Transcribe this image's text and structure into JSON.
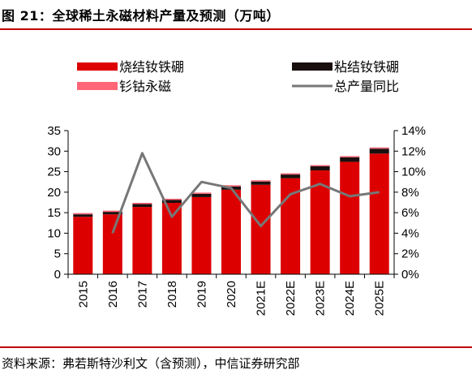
{
  "figure": {
    "title": "图 21：全球稀土永磁材料产量及预测（万吨）",
    "source": "资料来源：弗若斯特沙利文（含预测），中信证券研究部"
  },
  "colors": {
    "sintered": "#dd0000",
    "bonded": "#1a0f0f",
    "smco": "#ff6677",
    "growth": "#777777",
    "rule": "#c00000"
  },
  "chart_data": {
    "type": "bar",
    "stacked": true,
    "categories": [
      "2015",
      "2016",
      "2017",
      "2018",
      "2019",
      "2020",
      "2021E",
      "2022E",
      "2023E",
      "2024E",
      "2025E"
    ],
    "series": [
      {
        "name": "烧结钕铁硼",
        "type": "bar",
        "axis": "left",
        "color": "#dd0000",
        "values": [
          14.0,
          14.6,
          16.4,
          17.4,
          18.8,
          20.6,
          21.8,
          23.4,
          25.3,
          27.4,
          29.4
        ]
      },
      {
        "name": "粘结钕铁硼",
        "type": "bar",
        "axis": "left",
        "color": "#1a0f0f",
        "values": [
          0.6,
          0.6,
          0.7,
          0.7,
          0.8,
          0.8,
          0.8,
          0.9,
          1.0,
          1.1,
          1.2
        ]
      },
      {
        "name": "钐钴永磁",
        "type": "bar",
        "axis": "left",
        "color": "#ff6677",
        "values": [
          0.3,
          0.3,
          0.3,
          0.3,
          0.3,
          0.3,
          0.3,
          0.3,
          0.3,
          0.3,
          0.3
        ]
      },
      {
        "name": "总产量同比",
        "type": "line",
        "axis": "right",
        "color": "#777777",
        "values": [
          null,
          4.0,
          11.8,
          5.6,
          9.0,
          8.4,
          4.7,
          7.8,
          8.8,
          7.6,
          8.0
        ]
      }
    ],
    "left_axis": {
      "ylim": [
        0,
        35
      ],
      "ticks": [
        "0",
        "5",
        "10",
        "15",
        "20",
        "25",
        "30",
        "35"
      ]
    },
    "right_axis": {
      "ylim": [
        0,
        14
      ],
      "ticks": [
        "0%",
        "2%",
        "4%",
        "6%",
        "8%",
        "10%",
        "12%",
        "14%"
      ]
    },
    "legend_position": "top",
    "grid": false
  }
}
